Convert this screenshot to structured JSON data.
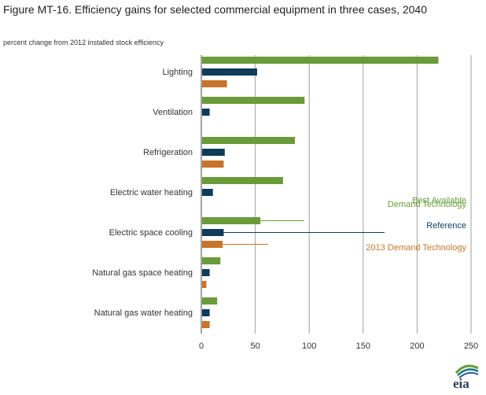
{
  "header": {
    "title": "Figure MT-16. Efficiency gains for selected commercial equipment in three cases, 2040",
    "subtitle": "percent change from 2012 installed stock efficiency"
  },
  "logo": {
    "text": "eia",
    "icon": "eia-logo"
  },
  "colors": {
    "best": "#6a9b3a",
    "reference": "#0e3c5a",
    "demand2013": "#c8742a",
    "grid": "#a0a0a0"
  },
  "chart_data": {
    "type": "bar",
    "orientation": "horizontal",
    "categories": [
      "Lighting",
      "Ventilation",
      "Refrigeration",
      "Electric water heating",
      "Electric space cooling",
      "Natural gas space heating",
      "Natural gas water heating"
    ],
    "series": [
      {
        "name": "Best Available Demand Technology",
        "color": "#6a9b3a",
        "values": [
          219,
          95,
          86,
          75,
          54,
          17,
          14
        ]
      },
      {
        "name": "Reference",
        "color": "#0e3c5a",
        "values": [
          51,
          7,
          21,
          10,
          20,
          7,
          7
        ]
      },
      {
        "name": "2013 Demand Technology",
        "color": "#c8742a",
        "values": [
          23,
          0,
          20,
          0,
          19,
          4,
          7
        ]
      }
    ],
    "legend": [
      {
        "lines": [
          "Best Available",
          "Demand Technology"
        ],
        "color": "#6a9b3a"
      },
      {
        "lines": [
          "Reference"
        ],
        "color": "#0e3c5a"
      },
      {
        "lines": [
          "2013 Demand Technology"
        ],
        "color": "#c8742a"
      }
    ],
    "legend_placement": "right, with leader lines to the Electric space cooling bars",
    "xlim": [
      0,
      250
    ],
    "xticks": [
      "0",
      "50",
      "100",
      "150",
      "200",
      "250"
    ],
    "grid": "vertical"
  }
}
